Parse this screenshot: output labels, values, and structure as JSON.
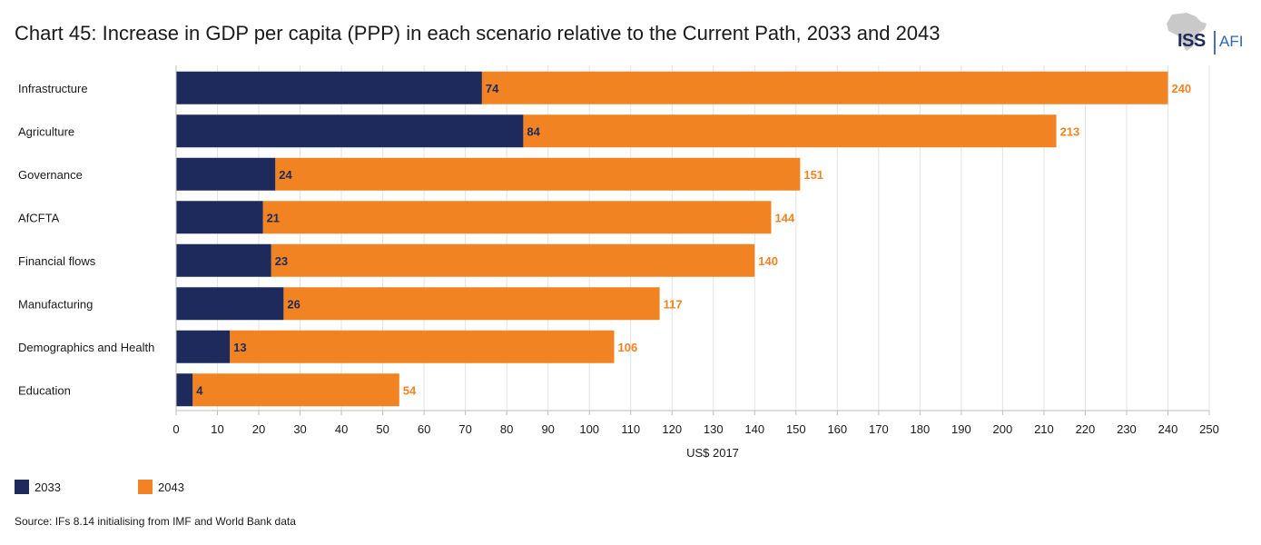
{
  "chart_data": {
    "type": "bar",
    "orientation": "horizontal",
    "title": "Chart 45: Increase in GDP per capita (PPP) in each scenario relative to the Current Path, 2033 and 2043",
    "categories": [
      "Infrastructure",
      "Agriculture",
      "Governance",
      "AfCFTA",
      "Financial flows",
      "Manufacturing",
      "Demographics and Health",
      "Education"
    ],
    "series": [
      {
        "name": "2033",
        "color": "#1d2a5b",
        "values": [
          74,
          84,
          24,
          21,
          23,
          26,
          13,
          4
        ]
      },
      {
        "name": "2043",
        "color": "#f28322",
        "values": [
          240,
          213,
          151,
          144,
          140,
          117,
          106,
          54
        ]
      }
    ],
    "xlabel": "US$ 2017",
    "ylabel": "",
    "xlim": [
      0,
      250
    ],
    "xticks": [
      0,
      10,
      20,
      30,
      40,
      50,
      60,
      70,
      80,
      90,
      100,
      110,
      120,
      130,
      140,
      150,
      160,
      170,
      180,
      190,
      200,
      210,
      220,
      230,
      240,
      250
    ],
    "grid": true,
    "legend_position": "bottom-left"
  },
  "logo": {
    "primary": "ISS",
    "secondary": "AFI"
  },
  "source": "Source: IFs 8.14 initialising from IMF and World Bank data"
}
